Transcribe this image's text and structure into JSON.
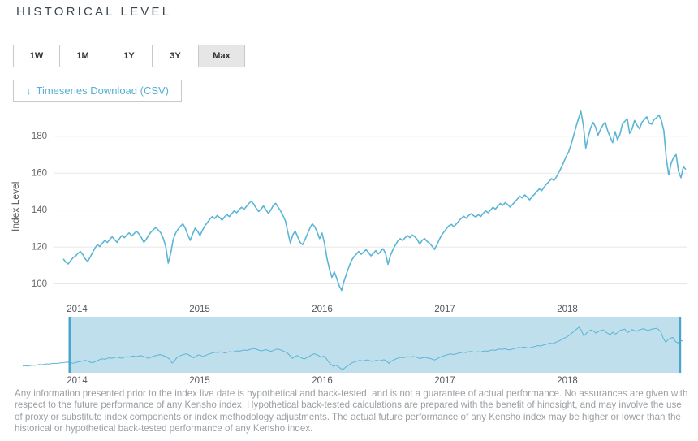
{
  "header": {
    "title": "HISTORICAL LEVEL"
  },
  "range_buttons": [
    {
      "label": "1W",
      "selected": false
    },
    {
      "label": "1M",
      "selected": false
    },
    {
      "label": "1Y",
      "selected": false
    },
    {
      "label": "3Y",
      "selected": false
    },
    {
      "label": "Max",
      "selected": true
    }
  ],
  "download": {
    "icon": "↓",
    "label": "Timeseries Download (CSV)"
  },
  "colors": {
    "line": "#5bb5d5",
    "grid": "#e7e7e7",
    "nav_selection_fill": "#bfdfec",
    "nav_handle": "#49a5cb",
    "tick_text": "#63676b",
    "year_text": "#54595e",
    "accent_text": "#54b0d4"
  },
  "chart_data": {
    "type": "line",
    "title": "",
    "xlabel": "",
    "ylabel": "Index Level",
    "grid": true,
    "y_ticks": [
      100,
      120,
      140,
      160,
      180
    ],
    "ylim": [
      88,
      200
    ],
    "x_tick_labels": [
      "2014",
      "2015",
      "2016",
      "2017",
      "2018"
    ],
    "x_start": "2013-10",
    "x_end": "2018-12",
    "series": [
      {
        "name": "Index Level",
        "values": [
          113.5,
          111.8,
          110.8,
          112.5,
          114.2,
          115.0,
          116.5,
          117.5,
          115.8,
          113.5,
          112.2,
          114.5,
          117.0,
          119.5,
          121.2,
          120.2,
          122.0,
          123.5,
          122.4,
          124.0,
          125.5,
          124.0,
          122.5,
          124.5,
          126.2,
          125.0,
          126.5,
          127.6,
          126.0,
          127.2,
          128.5,
          127.0,
          125.0,
          122.5,
          124.2,
          126.5,
          128.2,
          129.5,
          130.6,
          129.0,
          127.5,
          124.5,
          120.0,
          111.2,
          116.5,
          124.0,
          127.5,
          129.6,
          131.2,
          132.5,
          130.0,
          126.5,
          123.6,
          127.0,
          130.2,
          128.5,
          126.2,
          129.0,
          131.5,
          133.2,
          135.0,
          136.5,
          135.4,
          137.0,
          136.0,
          134.5,
          136.2,
          137.5,
          136.4,
          138.0,
          139.5,
          138.5,
          140.2,
          141.5,
          140.4,
          142.0,
          143.5,
          144.8,
          143.2,
          141.0,
          139.2,
          140.5,
          142.2,
          140.0,
          138.2,
          140.0,
          142.5,
          143.6,
          141.5,
          139.5,
          137.0,
          134.0,
          128.0,
          122.2,
          126.5,
          128.6,
          125.5,
          122.5,
          121.2,
          124.0,
          127.0,
          130.2,
          132.5,
          131.0,
          128.0,
          124.5,
          127.5,
          122.0,
          114.0,
          108.0,
          103.5,
          106.5,
          103.0,
          99.0,
          96.5,
          101.5,
          105.5,
          109.2,
          112.5,
          114.6,
          116.0,
          117.5,
          116.0,
          117.2,
          118.5,
          117.0,
          115.2,
          116.5,
          118.0,
          116.2,
          117.5,
          119.0,
          116.5,
          110.6,
          115.5,
          118.5,
          121.0,
          123.2,
          124.5,
          123.5,
          125.0,
          126.2,
          125.0,
          126.5,
          125.5,
          124.0,
          121.5,
          123.6,
          124.5,
          123.0,
          122.0,
          120.5,
          118.6,
          121.0,
          124.0,
          126.5,
          128.2,
          130.0,
          131.5,
          132.2,
          131.0,
          132.5,
          134.0,
          135.5,
          136.6,
          135.5,
          137.0,
          138.0,
          137.0,
          136.2,
          137.5,
          136.5,
          138.2,
          139.5,
          138.5,
          140.0,
          141.5,
          140.5,
          142.2,
          143.5,
          142.5,
          144.0,
          143.0,
          141.6,
          143.0,
          144.5,
          146.0,
          147.5,
          146.5,
          148.2,
          147.0,
          145.5,
          147.2,
          148.5,
          150.0,
          151.5,
          150.5,
          152.5,
          154.2,
          155.5,
          157.0,
          156.0,
          158.0,
          160.5,
          163.0,
          166.0,
          169.0,
          171.5,
          175.5,
          180.0,
          185.0,
          189.5,
          193.5,
          186.0,
          173.5,
          179.5,
          184.5,
          187.5,
          185.0,
          180.5,
          183.5,
          186.0,
          187.5,
          183.0,
          179.5,
          176.5,
          182.5,
          178.0,
          181.0,
          186.5,
          188.0,
          189.5,
          181.5,
          184.0,
          188.5,
          186.0,
          184.0,
          187.5,
          189.0,
          190.5,
          187.0,
          186.5,
          189.0,
          190.0,
          191.5,
          188.5,
          183.0,
          168.0,
          159.0,
          165.5,
          168.5,
          170.0,
          161.0,
          157.5,
          163.5,
          162.0
        ]
      }
    ],
    "navigator": {
      "prefix_values": [
        104.5,
        105.2,
        104.2,
        105.5,
        106.5,
        106.0,
        107.2,
        108.0,
        107.5,
        108.6,
        109.5,
        109.0,
        110.2,
        111.0,
        110.5,
        111.5,
        112.0,
        112.6,
        113.2
      ],
      "x_tick_labels": [
        "2014",
        "2015",
        "2016",
        "2017",
        "2018"
      ],
      "selection": {
        "from_label": "2014 (start of zoomed range)",
        "to_label": "end of data"
      }
    }
  },
  "disclaimer": "Any information presented prior to the index live date is hypothetical and back-tested, and is not a guarantee of actual performance. No assurances are given with respect to the future performance of any Kensho index. Hypothetical back-tested calculations are prepared with the benefit of hindsight, and may involve the use of proxy or substitute index components or index methodology adjustments. The actual future performance of any Kensho index may be higher or lower than the historical or hypothetical back-tested performance of any Kensho index."
}
